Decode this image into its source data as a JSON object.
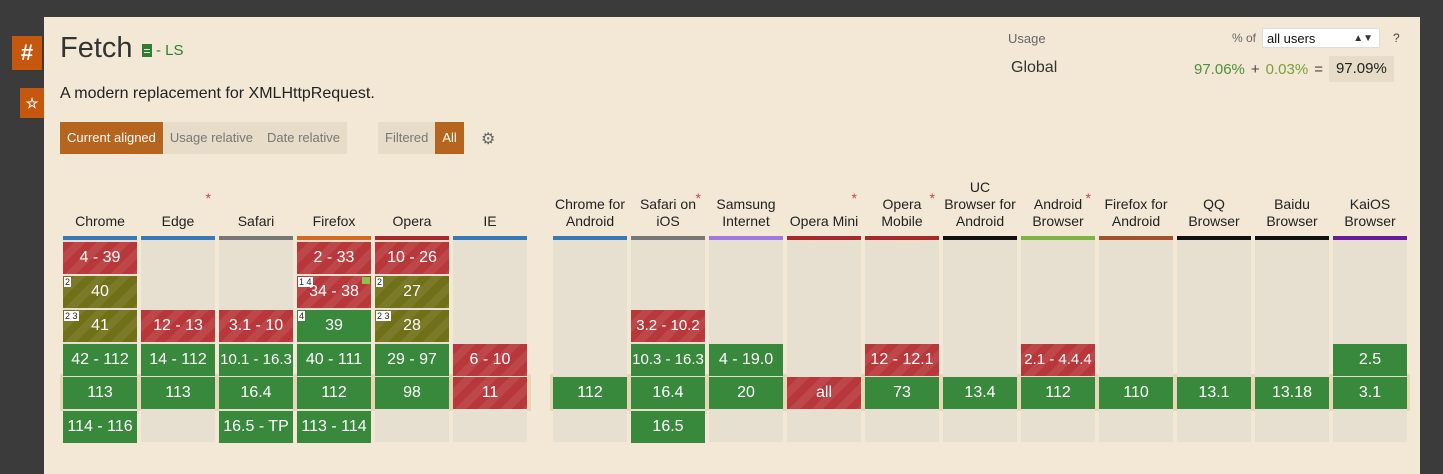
{
  "feature": {
    "title": "Fetch",
    "status": "- LS",
    "description": "A modern replacement for XMLHttpRequest."
  },
  "side": {
    "hash": "#",
    "star": "☆"
  },
  "usage": {
    "label": "Usage",
    "pct_of": "% of",
    "users": "all users",
    "help": "?",
    "region": "Global",
    "supported": "97.06%",
    "plus": "+",
    "partial": "0.03%",
    "equals": "=",
    "total": "97.09%"
  },
  "view_buttons": [
    "Current aligned",
    "Usage relative",
    "Date relative"
  ],
  "filter": {
    "label": "Filtered",
    "value": "All"
  },
  "colors": {
    "supported": "#39893c",
    "unsupported": "#b8373a",
    "partial": "#707018",
    "accent": "#b5651d"
  },
  "browsers": [
    {
      "name": "Chrome",
      "bar": "#3a78b5",
      "asterisk": false,
      "cells": [
        {
          "text": "4 - 39",
          "s": "n"
        },
        {
          "text": "40",
          "s": "a",
          "note": "2"
        },
        {
          "text": "41",
          "s": "a",
          "note": "2 3"
        },
        {
          "text": "42 - 112",
          "s": "y"
        },
        {
          "text": "113",
          "s": "y"
        },
        {
          "text": "114 - 116",
          "s": "y"
        }
      ]
    },
    {
      "name": "Edge",
      "bar": "#3a78b5",
      "asterisk": true,
      "cells": [
        {
          "text": "",
          "s": "u"
        },
        {
          "text": "",
          "s": "u"
        },
        {
          "text": "12 - 13",
          "s": "n"
        },
        {
          "text": "14 - 112",
          "s": "y"
        },
        {
          "text": "113",
          "s": "y"
        },
        {
          "text": "",
          "s": "u"
        }
      ]
    },
    {
      "name": "Safari",
      "bar": "#777777",
      "asterisk": false,
      "cells": [
        {
          "text": "",
          "s": "u"
        },
        {
          "text": "",
          "s": "u"
        },
        {
          "text": "3.1 - 10",
          "s": "n"
        },
        {
          "text": "10.1 - 16.3",
          "s": "y"
        },
        {
          "text": "16.4",
          "s": "y"
        },
        {
          "text": "16.5 - TP",
          "s": "y"
        }
      ]
    },
    {
      "name": "Firefox",
      "bar": "#d36a22",
      "asterisk": false,
      "cells": [
        {
          "text": "2 - 33",
          "s": "n"
        },
        {
          "text": "34 - 38",
          "s": "n",
          "note": "1 4",
          "flag": true
        },
        {
          "text": "39",
          "s": "y",
          "note": "4"
        },
        {
          "text": "40 - 111",
          "s": "y"
        },
        {
          "text": "112",
          "s": "y"
        },
        {
          "text": "113 - 114",
          "s": "y"
        }
      ]
    },
    {
      "name": "Opera",
      "bar": "#a52a2a",
      "asterisk": false,
      "cells": [
        {
          "text": "10 - 26",
          "s": "n"
        },
        {
          "text": "27",
          "s": "a",
          "note": "2"
        },
        {
          "text": "28",
          "s": "a",
          "note": "2 3"
        },
        {
          "text": "29 - 97",
          "s": "y"
        },
        {
          "text": "98",
          "s": "y"
        },
        {
          "text": "",
          "s": "u"
        }
      ]
    },
    {
      "name": "IE",
      "bar": "#3a78b5",
      "asterisk": false,
      "cells": [
        {
          "text": "",
          "s": "u"
        },
        {
          "text": "",
          "s": "u"
        },
        {
          "text": "",
          "s": "u"
        },
        {
          "text": "6 - 10",
          "s": "n"
        },
        {
          "text": "11",
          "s": "n"
        },
        {
          "text": "",
          "s": "u"
        }
      ]
    },
    {
      "name": "Chrome for Android",
      "bar": "#3a78b5",
      "asterisk": false,
      "gap": true,
      "cells": [
        {
          "text": "",
          "s": "u"
        },
        {
          "text": "",
          "s": "u"
        },
        {
          "text": "",
          "s": "u"
        },
        {
          "text": "",
          "s": "u"
        },
        {
          "text": "112",
          "s": "y"
        },
        {
          "text": "",
          "s": "u"
        }
      ]
    },
    {
      "name": "Safari on iOS",
      "bar": "#777777",
      "asterisk": true,
      "cells": [
        {
          "text": "",
          "s": "u"
        },
        {
          "text": "",
          "s": "u"
        },
        {
          "text": "3.2 - 10.2",
          "s": "n"
        },
        {
          "text": "10.3 - 16.3",
          "s": "y"
        },
        {
          "text": "16.4",
          "s": "y"
        },
        {
          "text": "16.5",
          "s": "y"
        }
      ]
    },
    {
      "name": "Samsung Internet",
      "bar": "#a178e0",
      "asterisk": false,
      "cells": [
        {
          "text": "",
          "s": "u"
        },
        {
          "text": "",
          "s": "u"
        },
        {
          "text": "",
          "s": "u"
        },
        {
          "text": "4 - 19.0",
          "s": "y"
        },
        {
          "text": "20",
          "s": "y"
        },
        {
          "text": "",
          "s": "u"
        }
      ]
    },
    {
      "name": "Opera Mini",
      "bar": "#a52a2a",
      "asterisk": true,
      "cells": [
        {
          "text": "",
          "s": "u"
        },
        {
          "text": "",
          "s": "u"
        },
        {
          "text": "",
          "s": "u"
        },
        {
          "text": "",
          "s": "u"
        },
        {
          "text": "all",
          "s": "n"
        },
        {
          "text": "",
          "s": "u"
        }
      ]
    },
    {
      "name": "Opera Mobile",
      "bar": "#a52a2a",
      "asterisk": true,
      "cells": [
        {
          "text": "",
          "s": "u"
        },
        {
          "text": "",
          "s": "u"
        },
        {
          "text": "",
          "s": "u"
        },
        {
          "text": "12 - 12.1",
          "s": "n"
        },
        {
          "text": "73",
          "s": "y"
        },
        {
          "text": "",
          "s": "u"
        }
      ]
    },
    {
      "name": "UC Browser for Android",
      "bar": "#111111",
      "asterisk": false,
      "cells": [
        {
          "text": "",
          "s": "u"
        },
        {
          "text": "",
          "s": "u"
        },
        {
          "text": "",
          "s": "u"
        },
        {
          "text": "",
          "s": "u"
        },
        {
          "text": "13.4",
          "s": "y"
        },
        {
          "text": "",
          "s": "u"
        }
      ]
    },
    {
      "name": "Android Browser",
      "bar": "#7cb342",
      "asterisk": true,
      "cells": [
        {
          "text": "",
          "s": "u"
        },
        {
          "text": "",
          "s": "u"
        },
        {
          "text": "",
          "s": "u"
        },
        {
          "text": "2.1 - 4.4.4",
          "s": "n"
        },
        {
          "text": "112",
          "s": "y"
        },
        {
          "text": "",
          "s": "u"
        }
      ]
    },
    {
      "name": "Firefox for Android",
      "bar": "#a0522d",
      "asterisk": false,
      "cells": [
        {
          "text": "",
          "s": "u"
        },
        {
          "text": "",
          "s": "u"
        },
        {
          "text": "",
          "s": "u"
        },
        {
          "text": "",
          "s": "u"
        },
        {
          "text": "110",
          "s": "y"
        },
        {
          "text": "",
          "s": "u"
        }
      ]
    },
    {
      "name": "QQ Browser",
      "bar": "#111111",
      "asterisk": false,
      "cells": [
        {
          "text": "",
          "s": "u"
        },
        {
          "text": "",
          "s": "u"
        },
        {
          "text": "",
          "s": "u"
        },
        {
          "text": "",
          "s": "u"
        },
        {
          "text": "13.1",
          "s": "y"
        },
        {
          "text": "",
          "s": "u"
        }
      ]
    },
    {
      "name": "Baidu Browser",
      "bar": "#111111",
      "asterisk": false,
      "cells": [
        {
          "text": "",
          "s": "u"
        },
        {
          "text": "",
          "s": "u"
        },
        {
          "text": "",
          "s": "u"
        },
        {
          "text": "",
          "s": "u"
        },
        {
          "text": "13.18",
          "s": "y"
        },
        {
          "text": "",
          "s": "u"
        }
      ]
    },
    {
      "name": "KaiOS Browser",
      "bar": "#6a1b9a",
      "asterisk": false,
      "cells": [
        {
          "text": "",
          "s": "u"
        },
        {
          "text": "",
          "s": "u"
        },
        {
          "text": "",
          "s": "u"
        },
        {
          "text": "2.5",
          "s": "y"
        },
        {
          "text": "3.1",
          "s": "y"
        },
        {
          "text": "",
          "s": "u"
        }
      ]
    }
  ]
}
